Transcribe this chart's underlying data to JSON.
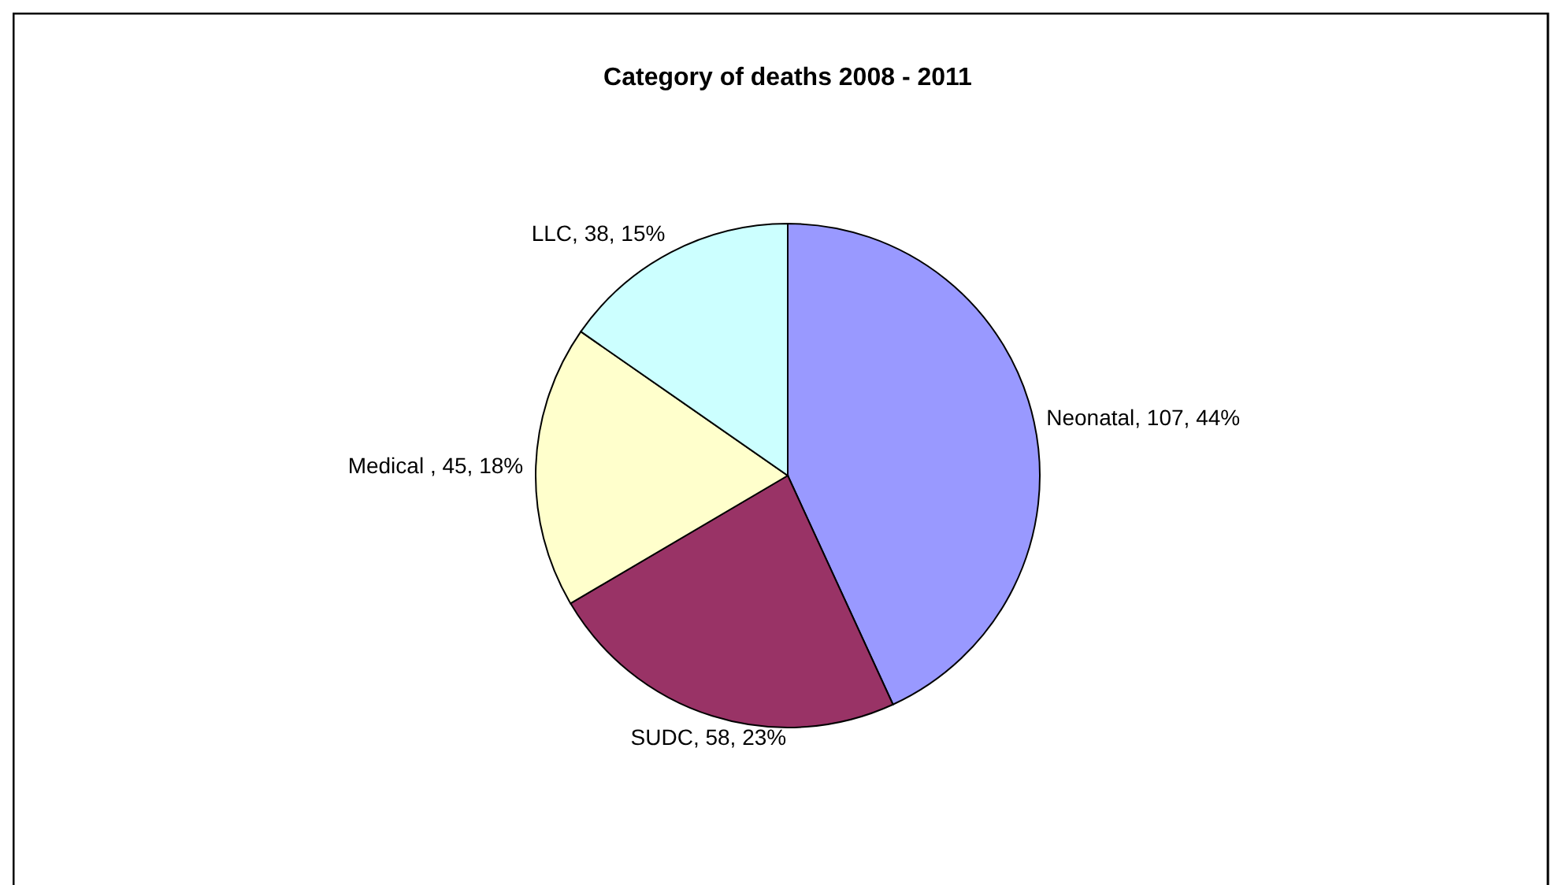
{
  "chart_data": {
    "type": "pie",
    "title": "Category of deaths 2008 - 2011",
    "categories": [
      "Neonatal",
      "SUDC",
      "Medical ",
      "LLC"
    ],
    "values": [
      107,
      58,
      45,
      38
    ],
    "value_labels": [
      "107, 44%",
      "58, 23%",
      "45, 18%",
      "38, 15%"
    ],
    "colors": [
      "#9999ff",
      "#993366",
      "#ffffcc",
      "#ccffff"
    ]
  }
}
